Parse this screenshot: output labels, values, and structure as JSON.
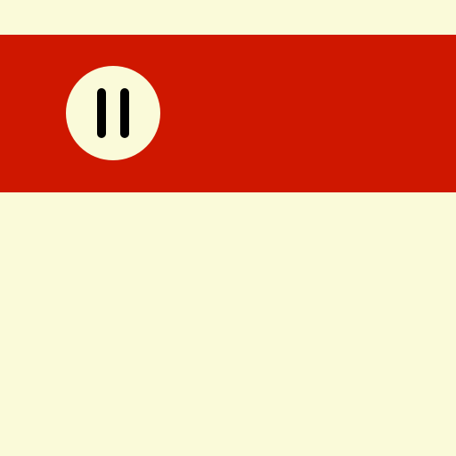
{
  "colors": {
    "background": "#fafad9",
    "banner": "#cf1700",
    "button": "#fafad9",
    "icon": "#000000"
  },
  "controls": {
    "playback_button": {
      "icon": "pause-icon",
      "state": "playing"
    }
  }
}
